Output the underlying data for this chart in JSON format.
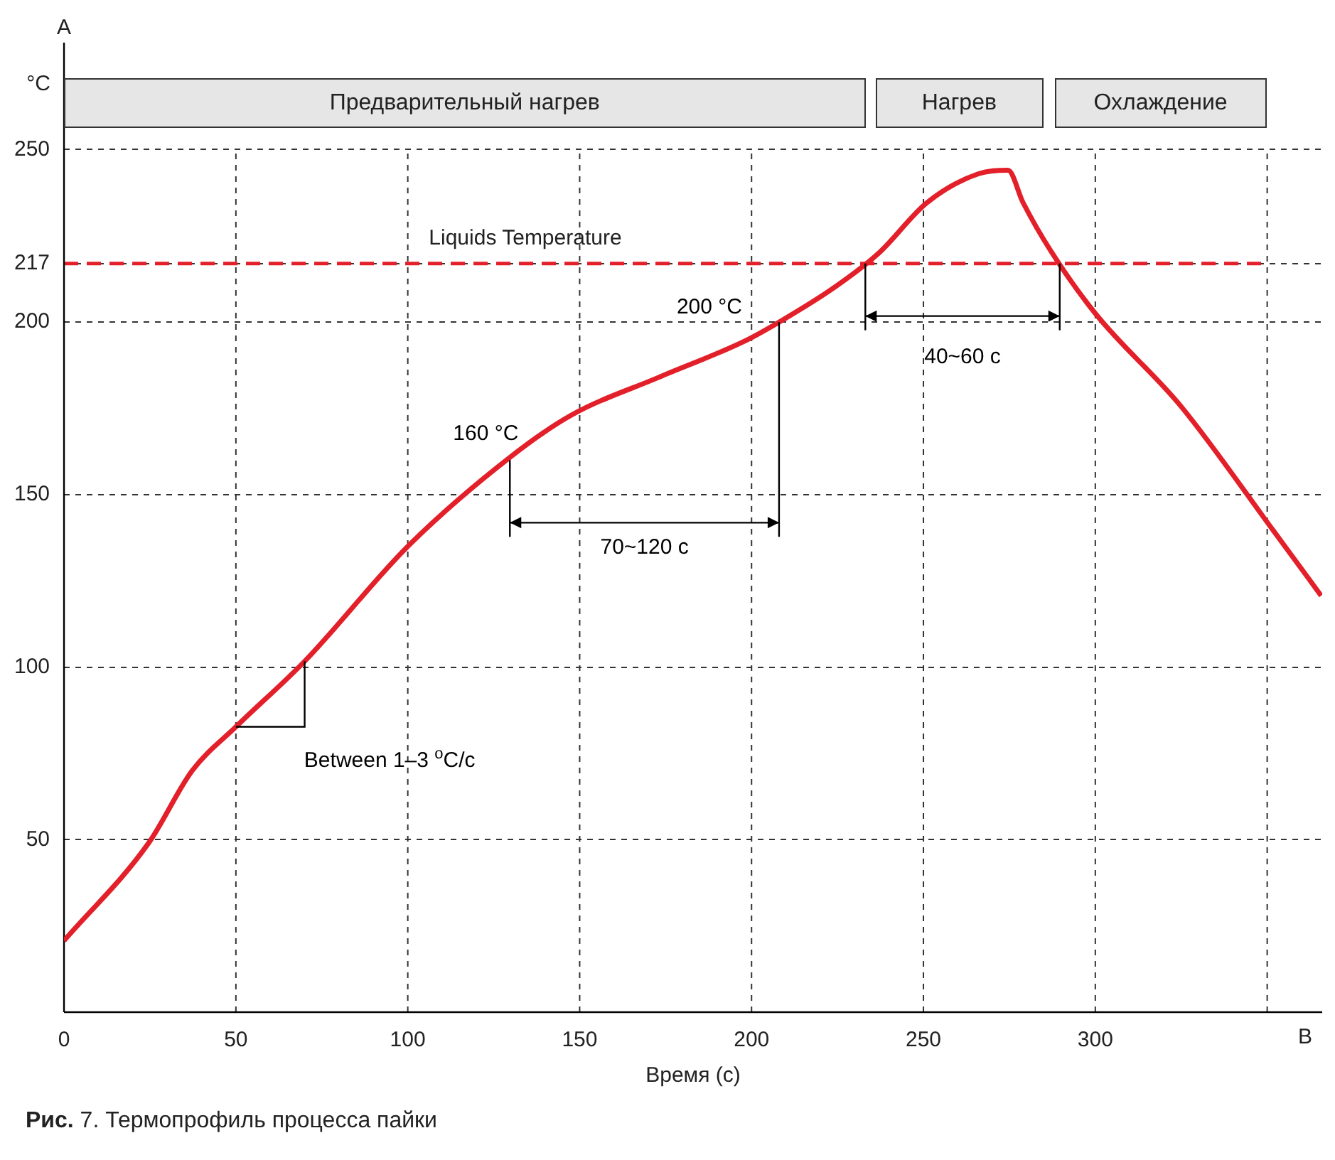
{
  "chart_data": {
    "type": "line",
    "xlabel": "Время (с)",
    "ylabel": "°C",
    "x": [
      0,
      24.6,
      37.3,
      50,
      70,
      100,
      129.7,
      147.5,
      173,
      198,
      208,
      224,
      237,
      251,
      266,
      274.6,
      279,
      287,
      300,
      325,
      351.7,
      365.7
    ],
    "series": [
      {
        "color": "#e3202a",
        "values": [
          20.7,
          49,
          70,
          82.7,
          101.7,
          135,
          160.8,
          173,
          184,
          194.5,
          200,
          210,
          220,
          234.6,
          243,
          244,
          234.6,
          220.7,
          202.5,
          175.5,
          139.7,
          120.7
        ]
      }
    ],
    "xlim": [
      0,
      366
    ],
    "xticks": [
      0,
      50,
      100,
      150,
      200,
      250,
      300,
      {
        "value": 350,
        "label": null
      }
    ],
    "ylim": [
      0,
      281
    ],
    "yticks": [
      50,
      100,
      150,
      200,
      217,
      250
    ],
    "grid": true,
    "legend": false,
    "marker": "none",
    "line_style": "solid",
    "ref_lines": [
      {
        "axis": "y",
        "value": 217,
        "label": "Liquids Temperature",
        "color": "#e3202a",
        "line_style": "dashed"
      }
    ],
    "annotations": [
      {
        "text": "160 °C",
        "x": 129.7,
        "y": 160
      },
      {
        "text": "200 °C",
        "x": 208,
        "y": 200
      },
      "70~120 с",
      "40~60 с",
      "Between 1–3 $^{o}$C/с",
      "Предварительный нагрев",
      "Нагрев",
      "Охлаждение",
      "A",
      "B",
      "Рис. 7. Термопрофиль процесса пайки"
    ]
  }
}
